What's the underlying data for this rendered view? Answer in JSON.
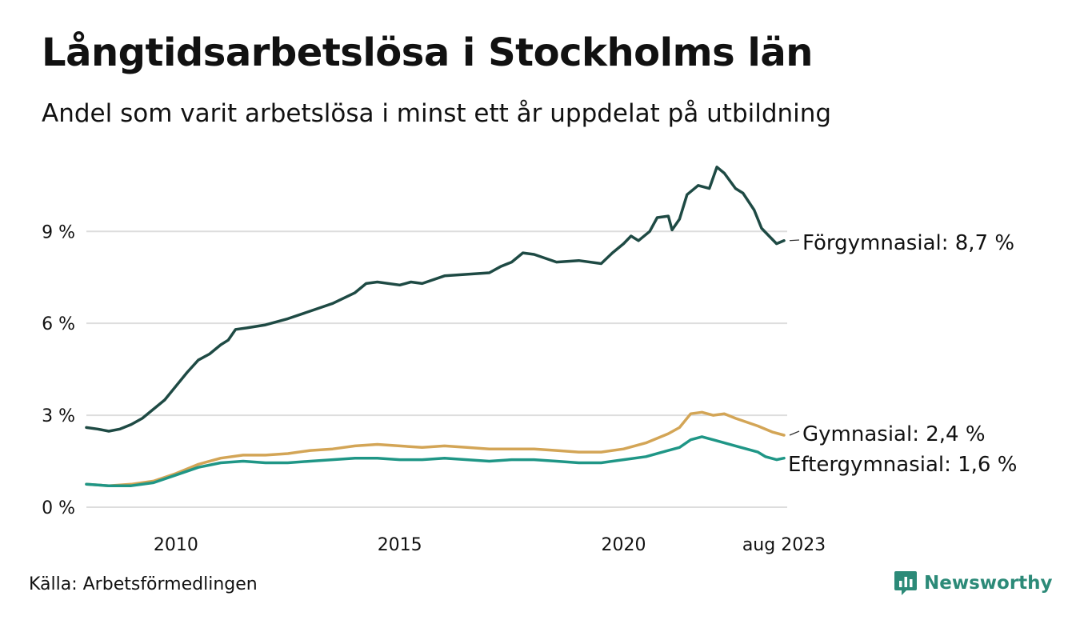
{
  "title": "Långtidsarbetslösa i Stockholms län",
  "subtitle": "Andel som varit arbetslösa i minst ett år uppdelat på utbildning",
  "source": "Källa: Arbetsförmedlingen",
  "brand": {
    "name": "Newsworthy",
    "icon": "newsworthy-logo-icon",
    "color": "#2c8a78"
  },
  "chart_data": {
    "type": "line",
    "x_start": "2008-01",
    "x_end": "2023-08",
    "x_ticks": [
      {
        "x": "2010-01",
        "label": "2010"
      },
      {
        "x": "2015-01",
        "label": "2015"
      },
      {
        "x": "2020-01",
        "label": "2020"
      },
      {
        "x": "2023-08",
        "label": "aug 2023"
      }
    ],
    "y_ticks": [
      {
        "v": 0,
        "label": "0 %"
      },
      {
        "v": 3,
        "label": "3 %"
      },
      {
        "v": 6,
        "label": "6 %"
      },
      {
        "v": 9,
        "label": "9 %"
      }
    ],
    "ylim": [
      0,
      11.2
    ],
    "grid": true,
    "series": [
      {
        "name": "Förgymnasial",
        "end_label": "Förgymnasial: 8,7 %",
        "color": "#1e4a44",
        "points": [
          [
            "2008-01",
            2.6
          ],
          [
            "2008-04",
            2.55
          ],
          [
            "2008-07",
            2.48
          ],
          [
            "2008-10",
            2.55
          ],
          [
            "2009-01",
            2.7
          ],
          [
            "2009-04",
            2.9
          ],
          [
            "2009-07",
            3.2
          ],
          [
            "2009-10",
            3.5
          ],
          [
            "2010-01",
            3.95
          ],
          [
            "2010-04",
            4.4
          ],
          [
            "2010-07",
            4.8
          ],
          [
            "2010-10",
            5.0
          ],
          [
            "2011-01",
            5.3
          ],
          [
            "2011-03",
            5.45
          ],
          [
            "2011-05",
            5.8
          ],
          [
            "2011-08",
            5.85
          ],
          [
            "2012-01",
            5.95
          ],
          [
            "2012-07",
            6.15
          ],
          [
            "2013-01",
            6.4
          ],
          [
            "2013-07",
            6.65
          ],
          [
            "2014-01",
            7.0
          ],
          [
            "2014-04",
            7.3
          ],
          [
            "2014-07",
            7.35
          ],
          [
            "2015-01",
            7.25
          ],
          [
            "2015-04",
            7.35
          ],
          [
            "2015-07",
            7.3
          ],
          [
            "2016-01",
            7.55
          ],
          [
            "2016-07",
            7.6
          ],
          [
            "2017-01",
            7.65
          ],
          [
            "2017-04",
            7.85
          ],
          [
            "2017-07",
            8.0
          ],
          [
            "2017-10",
            8.3
          ],
          [
            "2018-01",
            8.25
          ],
          [
            "2018-07",
            8.0
          ],
          [
            "2019-01",
            8.05
          ],
          [
            "2019-07",
            7.95
          ],
          [
            "2019-10",
            8.3
          ],
          [
            "2020-01",
            8.6
          ],
          [
            "2020-03",
            8.85
          ],
          [
            "2020-05",
            8.7
          ],
          [
            "2020-08",
            9.0
          ],
          [
            "2020-10",
            9.45
          ],
          [
            "2021-01",
            9.5
          ],
          [
            "2021-02",
            9.05
          ],
          [
            "2021-04",
            9.4
          ],
          [
            "2021-06",
            10.2
          ],
          [
            "2021-09",
            10.5
          ],
          [
            "2021-12",
            10.4
          ],
          [
            "2022-02",
            11.1
          ],
          [
            "2022-04",
            10.9
          ],
          [
            "2022-07",
            10.4
          ],
          [
            "2022-09",
            10.25
          ],
          [
            "2022-12",
            9.7
          ],
          [
            "2023-02",
            9.1
          ],
          [
            "2023-04",
            8.85
          ],
          [
            "2023-06",
            8.6
          ],
          [
            "2023-08",
            8.7
          ]
        ]
      },
      {
        "name": "Gymnasial",
        "end_label": "Gymnasial: 2,4 %",
        "color": "#d3a556",
        "points": [
          [
            "2008-01",
            0.75
          ],
          [
            "2008-07",
            0.7
          ],
          [
            "2009-01",
            0.75
          ],
          [
            "2009-07",
            0.85
          ],
          [
            "2010-01",
            1.1
          ],
          [
            "2010-07",
            1.4
          ],
          [
            "2011-01",
            1.6
          ],
          [
            "2011-07",
            1.7
          ],
          [
            "2012-01",
            1.7
          ],
          [
            "2012-07",
            1.75
          ],
          [
            "2013-01",
            1.85
          ],
          [
            "2013-07",
            1.9
          ],
          [
            "2014-01",
            2.0
          ],
          [
            "2014-07",
            2.05
          ],
          [
            "2015-01",
            2.0
          ],
          [
            "2015-07",
            1.95
          ],
          [
            "2016-01",
            2.0
          ],
          [
            "2016-07",
            1.95
          ],
          [
            "2017-01",
            1.9
          ],
          [
            "2017-07",
            1.9
          ],
          [
            "2018-01",
            1.9
          ],
          [
            "2018-07",
            1.85
          ],
          [
            "2019-01",
            1.8
          ],
          [
            "2019-07",
            1.8
          ],
          [
            "2020-01",
            1.9
          ],
          [
            "2020-07",
            2.1
          ],
          [
            "2021-01",
            2.4
          ],
          [
            "2021-04",
            2.6
          ],
          [
            "2021-07",
            3.05
          ],
          [
            "2021-10",
            3.1
          ],
          [
            "2022-01",
            3.0
          ],
          [
            "2022-04",
            3.05
          ],
          [
            "2022-07",
            2.9
          ],
          [
            "2023-01",
            2.65
          ],
          [
            "2023-05",
            2.45
          ],
          [
            "2023-08",
            2.35
          ]
        ]
      },
      {
        "name": "Eftergymnasial",
        "end_label": "Eftergymnasial: 1,6 %",
        "color": "#1f9686",
        "points": [
          [
            "2008-01",
            0.75
          ],
          [
            "2008-07",
            0.7
          ],
          [
            "2009-01",
            0.7
          ],
          [
            "2009-07",
            0.8
          ],
          [
            "2010-01",
            1.05
          ],
          [
            "2010-07",
            1.3
          ],
          [
            "2011-01",
            1.45
          ],
          [
            "2011-07",
            1.5
          ],
          [
            "2012-01",
            1.45
          ],
          [
            "2012-07",
            1.45
          ],
          [
            "2013-01",
            1.5
          ],
          [
            "2013-07",
            1.55
          ],
          [
            "2014-01",
            1.6
          ],
          [
            "2014-07",
            1.6
          ],
          [
            "2015-01",
            1.55
          ],
          [
            "2015-07",
            1.55
          ],
          [
            "2016-01",
            1.6
          ],
          [
            "2016-07",
            1.55
          ],
          [
            "2017-01",
            1.5
          ],
          [
            "2017-07",
            1.55
          ],
          [
            "2018-01",
            1.55
          ],
          [
            "2018-07",
            1.5
          ],
          [
            "2019-01",
            1.45
          ],
          [
            "2019-07",
            1.45
          ],
          [
            "2020-01",
            1.55
          ],
          [
            "2020-07",
            1.65
          ],
          [
            "2021-01",
            1.85
          ],
          [
            "2021-04",
            1.95
          ],
          [
            "2021-07",
            2.2
          ],
          [
            "2021-10",
            2.3
          ],
          [
            "2022-01",
            2.2
          ],
          [
            "2022-07",
            2.0
          ],
          [
            "2023-01",
            1.8
          ],
          [
            "2023-03",
            1.65
          ],
          [
            "2023-06",
            1.55
          ],
          [
            "2023-08",
            1.6
          ]
        ]
      }
    ]
  }
}
